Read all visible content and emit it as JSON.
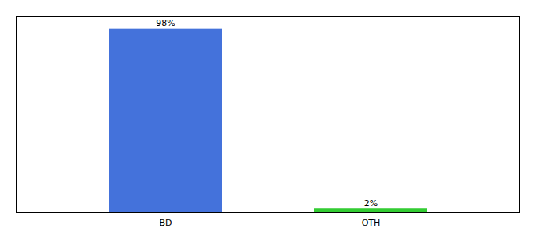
{
  "chart_data": {
    "type": "bar",
    "categories": [
      "BD",
      "OTH"
    ],
    "values": [
      98,
      2
    ],
    "value_labels": [
      "98%",
      "2%"
    ],
    "data_labels": true,
    "colors": [
      "#4472DB",
      "#33CC33"
    ],
    "ylim": [
      0,
      105
    ],
    "tick_labels": "x",
    "grid": false
  }
}
